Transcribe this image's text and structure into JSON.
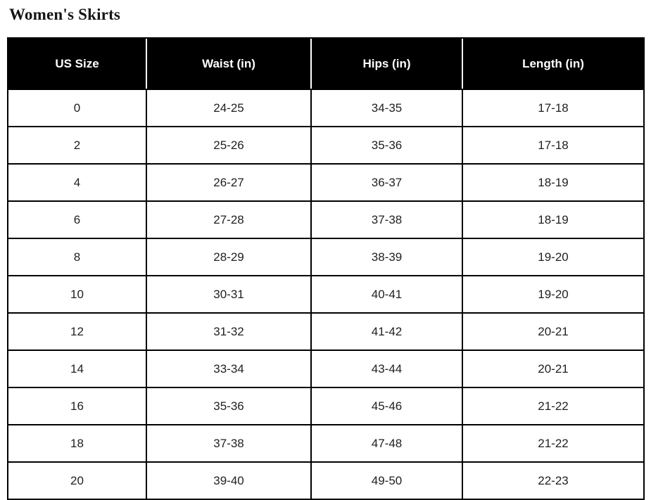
{
  "page": {
    "title": "Women's Skirts"
  },
  "table": {
    "columns": [
      "US Size",
      "Waist (in)",
      "Hips (in)",
      "Length (in)"
    ],
    "rows": [
      [
        "0",
        "24-25",
        "34-35",
        "17-18"
      ],
      [
        "2",
        "25-26",
        "35-36",
        "17-18"
      ],
      [
        "4",
        "26-27",
        "36-37",
        "18-19"
      ],
      [
        "6",
        "27-28",
        "37-38",
        "18-19"
      ],
      [
        "8",
        "28-29",
        "38-39",
        "19-20"
      ],
      [
        "10",
        "30-31",
        "40-41",
        "19-20"
      ],
      [
        "12",
        "31-32",
        "41-42",
        "20-21"
      ],
      [
        "14",
        "33-34",
        "43-44",
        "20-21"
      ],
      [
        "16",
        "35-36",
        "45-46",
        "21-22"
      ],
      [
        "18",
        "37-38",
        "47-48",
        "21-22"
      ],
      [
        "20",
        "39-40",
        "49-50",
        "22-23"
      ]
    ]
  },
  "colors": {
    "header_bg": "#000000",
    "header_text": "#ffffff",
    "body_text": "#1f1f1f",
    "border": "#000000",
    "title_text": "#161616"
  }
}
